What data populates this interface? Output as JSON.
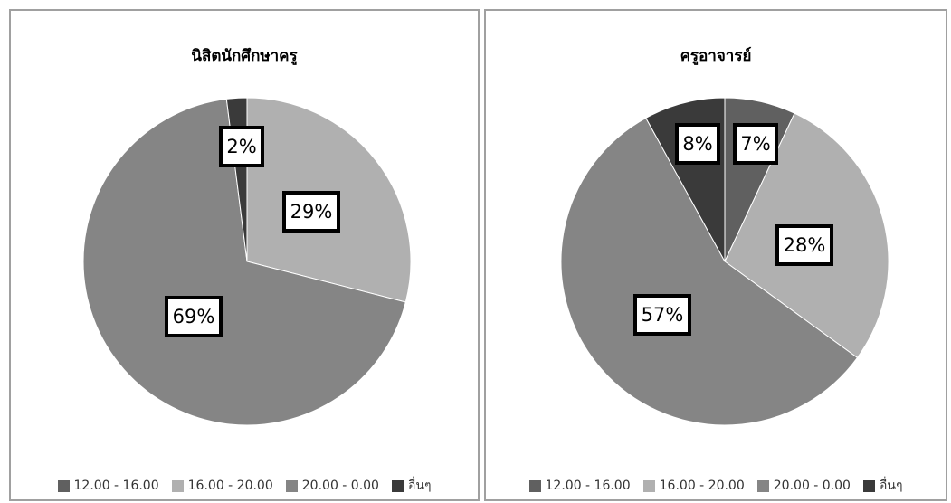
{
  "colors": {
    "12_16": "#606060",
    "16_20": "#b0b0b0",
    "20_0": "#858585",
    "other": "#3a3a3a",
    "border": "#a0a0a0"
  },
  "chart_data": [
    {
      "type": "pie",
      "title": "นิสิตนักศึกษาครู",
      "categories": [
        "12.00 - 16.00",
        "16.00 - 20.00",
        "20.00 - 0.00",
        "อื่นๆ"
      ],
      "values": [
        0,
        29,
        69,
        2
      ],
      "labels": [
        "",
        "29%",
        "69%",
        "2%"
      ],
      "legend": "bottom"
    },
    {
      "type": "pie",
      "title": "ครูอาจารย์",
      "categories": [
        "12.00 - 16.00",
        "16.00 - 20.00",
        "20.00 - 0.00",
        "อื่นๆ"
      ],
      "values": [
        7,
        28,
        57,
        8
      ],
      "labels": [
        "7%",
        "28%",
        "57%",
        "8%"
      ],
      "legend": "bottom"
    }
  ]
}
